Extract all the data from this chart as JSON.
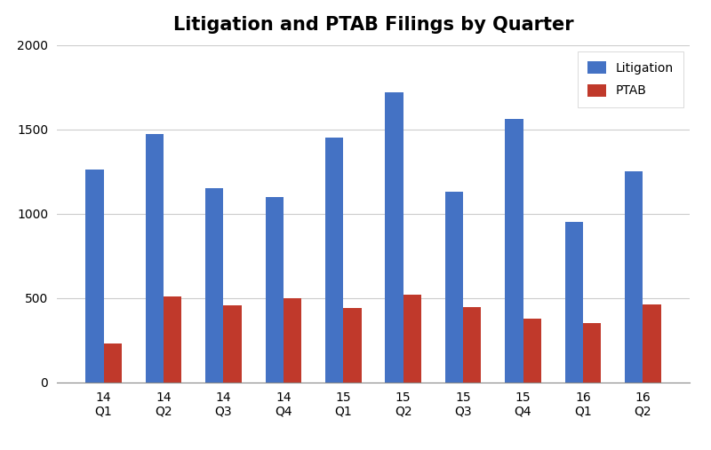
{
  "title": "Litigation and PTAB Filings by Quarter",
  "categories": [
    "14\nQ1",
    "14\nQ2",
    "14\nQ3",
    "14\nQ4",
    "15\nQ1",
    "15\nQ2",
    "15\nQ3",
    "15\nQ4",
    "16\nQ1",
    "16\nQ2"
  ],
  "litigation": [
    1260,
    1470,
    1150,
    1100,
    1450,
    1720,
    1130,
    1560,
    950,
    1250
  ],
  "ptab": [
    230,
    510,
    455,
    500,
    440,
    520,
    445,
    380,
    350,
    460
  ],
  "litigation_color": "#4472c4",
  "ptab_color": "#c0392b",
  "ylim": [
    0,
    2000
  ],
  "yticks": [
    0,
    500,
    1000,
    1500,
    2000
  ],
  "legend_labels": [
    "Litigation",
    "PTAB"
  ],
  "background_color": "#ffffff",
  "grid_color": "#cccccc",
  "title_fontsize": 15,
  "tick_fontsize": 10,
  "legend_fontsize": 10,
  "bar_width": 0.3
}
